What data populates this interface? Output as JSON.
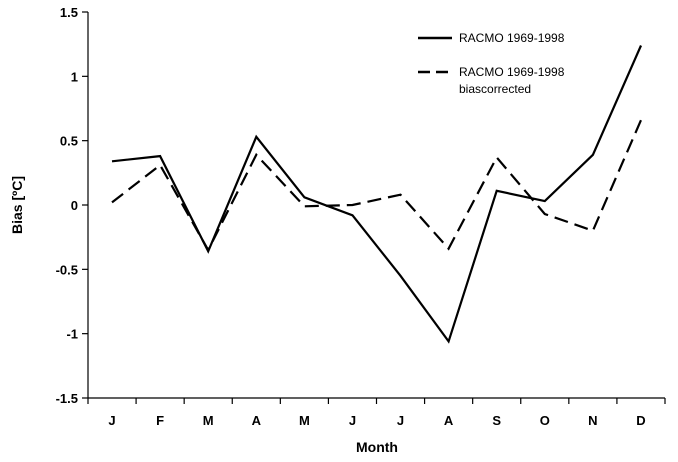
{
  "chart_data": {
    "type": "line",
    "title": "",
    "xlabel": "Month",
    "ylabel": "Bias [ºC]",
    "categories": [
      "J",
      "F",
      "M",
      "A",
      "M",
      "J",
      "J",
      "A",
      "S",
      "O",
      "N",
      "D"
    ],
    "ylim": [
      -1.5,
      1.5
    ],
    "yticks": [
      "1.5",
      "1",
      "0.5",
      "0",
      "-0.5",
      "-1",
      "-1.5"
    ],
    "grid": false,
    "legend_position": "top-right",
    "series": [
      {
        "name": "RACMO 1969-1998",
        "style": "solid",
        "color": "#000000",
        "values": [
          0.34,
          0.38,
          -0.36,
          0.53,
          0.06,
          -0.08,
          -0.55,
          -1.06,
          0.11,
          0.03,
          0.39,
          1.24
        ]
      },
      {
        "name": "RACMO 1969-1998",
        "name_line2": "biascorrected",
        "style": "dashed",
        "color": "#000000",
        "values": [
          0.02,
          0.31,
          -0.35,
          0.39,
          -0.01,
          0.0,
          0.08,
          -0.34,
          0.37,
          -0.07,
          -0.2,
          0.66
        ]
      }
    ]
  }
}
